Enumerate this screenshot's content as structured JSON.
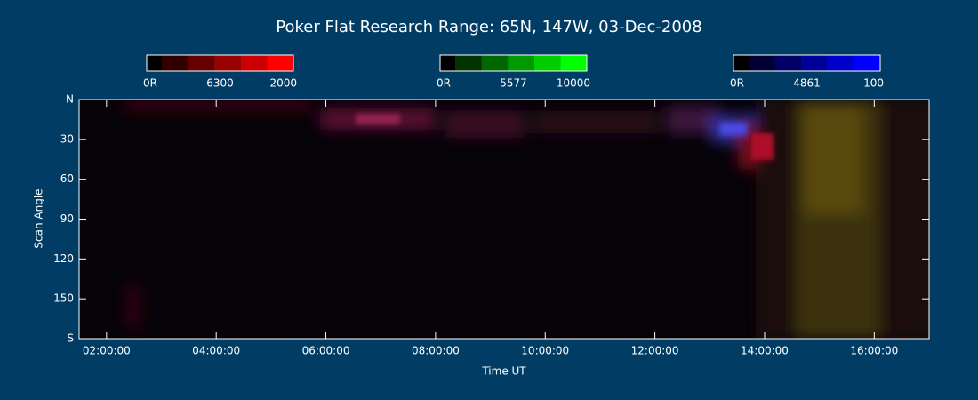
{
  "chart_data": {
    "type": "keogram",
    "title": "Poker Flat Research Range: 65N, 147W, 03-Dec-2008",
    "xlabel": "Time UT",
    "ylabel": "Scan Angle",
    "xlim": [
      1.5,
      17
    ],
    "xticks": [
      {
        "value": 2,
        "label": "02:00:00"
      },
      {
        "value": 4,
        "label": "04:00:00"
      },
      {
        "value": 6,
        "label": "06:00:00"
      },
      {
        "value": 8,
        "label": "08:00:00"
      },
      {
        "value": 10,
        "label": "10:00:00"
      },
      {
        "value": 12,
        "label": "12:00:00"
      },
      {
        "value": 14,
        "label": "14:00:00"
      },
      {
        "value": 16,
        "label": "16:00:00"
      }
    ],
    "ylim": [
      0,
      180
    ],
    "yticks": [
      {
        "value": 0,
        "label": "N"
      },
      30,
      60,
      90,
      120,
      150,
      {
        "value": 180,
        "label": "S"
      }
    ],
    "colorbars": [
      {
        "min": "0R",
        "name": "6300",
        "max": 2000,
        "color": "#ff0000"
      },
      {
        "min": "0R",
        "name": "5577",
        "max": 10000,
        "color": "#00ff00"
      },
      {
        "min": "0R",
        "name": "4861",
        "max": 100,
        "color": "#0000ff"
      }
    ]
  }
}
